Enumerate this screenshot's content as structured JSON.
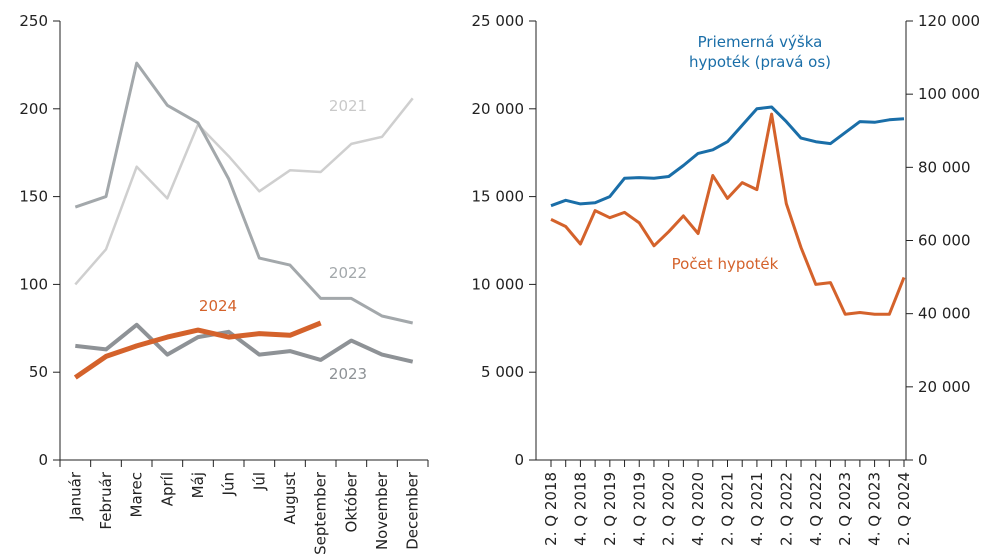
{
  "chart_data": [
    {
      "type": "line",
      "categories": [
        "Január",
        "Február",
        "Marec",
        "Apríl",
        "Máj",
        "Jún",
        "Júl",
        "August",
        "September",
        "Október",
        "November",
        "December"
      ],
      "series": [
        {
          "name": "2021",
          "color": "#cfcfcf",
          "values": [
            100,
            120,
            167,
            149,
            191,
            173,
            153,
            165,
            164,
            180,
            184,
            206
          ]
        },
        {
          "name": "2022",
          "color": "#a3a8ab",
          "values": [
            144,
            150,
            226,
            202,
            192,
            160,
            115,
            111,
            92,
            92,
            82,
            78
          ]
        },
        {
          "name": "2023",
          "color": "#8e9296",
          "values": [
            65,
            63,
            77,
            60,
            70,
            73,
            60,
            62,
            57,
            68,
            60,
            56
          ]
        },
        {
          "name": "2024",
          "color": "#d4622b",
          "values": [
            47,
            59,
            65,
            70,
            74,
            70,
            72,
            71,
            78,
            null,
            null,
            null
          ]
        }
      ],
      "ylim": [
        0,
        250
      ],
      "yticks": [
        0,
        50,
        100,
        150,
        200,
        250
      ]
    },
    {
      "type": "line",
      "categories": [
        "2. Q 2018",
        null,
        "4. Q 2018",
        null,
        "2. Q 2019",
        null,
        "4. Q 2019",
        null,
        "2. Q 2020",
        null,
        "4. Q 2020",
        null,
        "2. Q 2021",
        null,
        "4. Q 2021",
        null,
        "2. Q 2022",
        null,
        "4. Q 2022",
        null,
        "2. Q 2023",
        null,
        "4. Q 2023",
        null,
        "2. Q 2024"
      ],
      "series": [
        {
          "name": "Priemerná výška hypoték (pravá os)",
          "color": "#1a6ea8",
          "axis": "y2",
          "values": [
            69500,
            71000,
            70000,
            70300,
            72000,
            77000,
            77200,
            77000,
            77500,
            80500,
            83800,
            84800,
            87000,
            91500,
            96000,
            96500,
            92500,
            88000,
            87000,
            86500,
            89500,
            92500,
            92300,
            93000,
            93300
          ]
        },
        {
          "name": "Počet hypoték",
          "color": "#d4622b",
          "values": [
            13700,
            13300,
            12300,
            14200,
            13800,
            14100,
            13500,
            12200,
            13000,
            13900,
            12900,
            16200,
            14900,
            15800,
            15400,
            19700,
            14600,
            12100,
            10000,
            10100,
            8300,
            8400,
            8300,
            8300,
            10400
          ]
        }
      ],
      "ylim": [
        0,
        25000
      ],
      "yticks": [
        0,
        {
          "value": 5000,
          "label": "5 000"
        },
        {
          "value": 10000,
          "label": "10 000"
        },
        {
          "value": 15000,
          "label": "15 000"
        },
        {
          "value": 20000,
          "label": "20 000"
        },
        {
          "value": 25000,
          "label": "25 000"
        }
      ],
      "y2lim": [
        0,
        120000
      ],
      "y2ticks": [
        0,
        {
          "value": 20000,
          "label": "20 000"
        },
        {
          "value": 40000,
          "label": "40 000"
        },
        {
          "value": 60000,
          "label": "60 000"
        },
        {
          "value": 80000,
          "label": "80 000"
        },
        {
          "value": 100000,
          "label": "100 000"
        },
        {
          "value": 120000,
          "label": "120 000"
        }
      ]
    }
  ]
}
